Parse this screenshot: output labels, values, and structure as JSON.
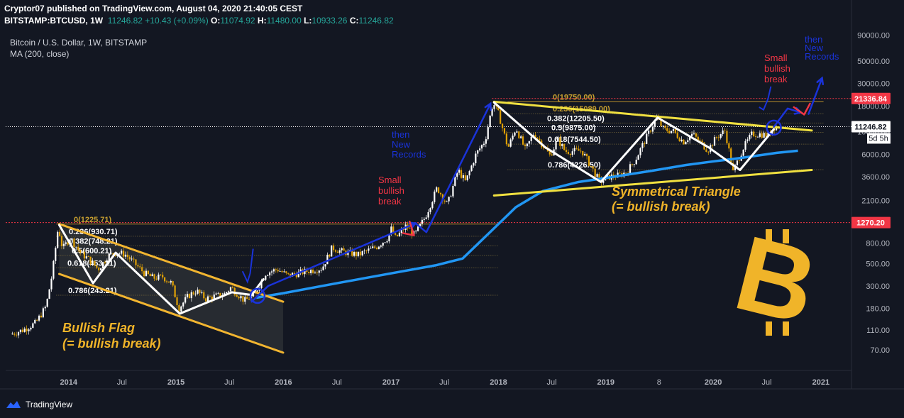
{
  "header": {
    "published_line": "Cryptor07 published on TradingView.com, August 04, 2020 21:40:05 CEST",
    "symbol": "BITSTAMP:BTCUSD, 1W",
    "last": "11246.82",
    "change": "+10.43 (+0.09%)",
    "open_label": "O:",
    "open": "11074.92",
    "high_label": "H:",
    "high": "11480.00",
    "low_label": "L:",
    "low": "10933.26",
    "close_label": "C:",
    "close": "11246.82"
  },
  "legend": {
    "series_title": "Bitcoin / U.S. Dollar, 1W, BITSTAMP",
    "indicator": "MA (200, close)"
  },
  "footer": {
    "brand": "TradingView"
  },
  "colors": {
    "background": "#131722",
    "up": "#ffffff",
    "down": "#e0a106",
    "ma": "#2196f3",
    "red": "#f23645",
    "yellow": "#f0e040",
    "blue_annot": "#1a33d9",
    "bitcoin": "#f0b429",
    "fib": "#c8a030"
  },
  "chart_data": {
    "type": "candlestick",
    "title": "Bitcoin / U.S. Dollar, 1W, BITSTAMP",
    "scale": "log",
    "x_tick_labels": [
      "2014",
      "Jul",
      "2015",
      "Jul",
      "2016",
      "Jul",
      "2017",
      "Jul",
      "2018",
      "Jul",
      "2019",
      "8",
      "2020",
      "Jul",
      "2021"
    ],
    "x_tick_dates": [
      "2014-01-01",
      "2014-07-01",
      "2015-01-01",
      "2015-07-01",
      "2016-01-01",
      "2016-07-01",
      "2017-01-01",
      "2017-07-01",
      "2018-01-01",
      "2018-07-01",
      "2019-01-01",
      "2019-07-01",
      "2020-01-01",
      "2020-07-01",
      "2021-01-01"
    ],
    "y_tick_labels": [
      "90000.00",
      "50000.00",
      "30000.00",
      "18000.00",
      "10000.00",
      "6000.00",
      "3600.00",
      "2100.00",
      "1200.00",
      "800.00",
      "500.00",
      "300.00",
      "180.00",
      "110.00",
      "70.00"
    ],
    "y_ticks": [
      90000,
      50000,
      30000,
      18000,
      10000,
      6000,
      3600,
      2100,
      1200,
      800,
      500,
      300,
      180,
      110,
      70
    ],
    "ylim": [
      44,
      105000
    ],
    "xlim": [
      "2013-06-01",
      "2021-04-15"
    ],
    "price_series": [
      [
        "2013-06-20",
        100
      ],
      [
        "2013-08-01",
        110
      ],
      [
        "2013-09-15",
        130
      ],
      [
        "2013-10-20",
        190
      ],
      [
        "2013-11-10",
        400
      ],
      [
        "2013-11-30",
        1150
      ],
      [
        "2013-12-15",
        700
      ],
      [
        "2014-01-10",
        900
      ],
      [
        "2014-02-15",
        630
      ],
      [
        "2014-03-15",
        550
      ],
      [
        "2014-04-15",
        440
      ],
      [
        "2014-05-20",
        600
      ],
      [
        "2014-06-15",
        640
      ],
      [
        "2014-07-15",
        620
      ],
      [
        "2014-08-20",
        490
      ],
      [
        "2014-09-20",
        400
      ],
      [
        "2014-10-20",
        360
      ],
      [
        "2014-11-20",
        370
      ],
      [
        "2014-12-20",
        320
      ],
      [
        "2015-01-14",
        180
      ],
      [
        "2015-02-15",
        240
      ],
      [
        "2015-03-15",
        270
      ],
      [
        "2015-04-15",
        225
      ],
      [
        "2015-05-15",
        238
      ],
      [
        "2015-06-15",
        245
      ],
      [
        "2015-07-10",
        290
      ],
      [
        "2015-08-25",
        215
      ],
      [
        "2015-09-25",
        238
      ],
      [
        "2015-11-04",
        400
      ],
      [
        "2015-12-15",
        440
      ],
      [
        "2016-01-20",
        380
      ],
      [
        "2016-03-15",
        415
      ],
      [
        "2016-05-15",
        450
      ],
      [
        "2016-06-18",
        720
      ],
      [
        "2016-07-20",
        660
      ],
      [
        "2016-09-15",
        610
      ],
      [
        "2016-11-15",
        730
      ],
      [
        "2016-12-25",
        900
      ],
      [
        "2017-01-05",
        1100
      ],
      [
        "2017-01-20",
        890
      ],
      [
        "2017-02-25",
        1180
      ],
      [
        "2017-03-25",
        950
      ],
      [
        "2017-05-01",
        1450
      ],
      [
        "2017-06-10",
        2800
      ],
      [
        "2017-07-15",
        1900
      ],
      [
        "2017-08-20",
        4200
      ],
      [
        "2017-09-15",
        3200
      ],
      [
        "2017-10-20",
        6000
      ],
      [
        "2017-11-20",
        8200
      ],
      [
        "2017-12-17",
        19500
      ],
      [
        "2018-01-05",
        15000
      ],
      [
        "2018-02-06",
        6900
      ],
      [
        "2018-03-05",
        11000
      ],
      [
        "2018-04-06",
        6600
      ],
      [
        "2018-05-05",
        9800
      ],
      [
        "2018-06-29",
        5800
      ],
      [
        "2018-07-25",
        8400
      ],
      [
        "2018-08-20",
        6400
      ],
      [
        "2018-10-15",
        6500
      ],
      [
        "2018-11-20",
        4300
      ],
      [
        "2018-12-15",
        3200
      ],
      [
        "2019-01-15",
        3600
      ],
      [
        "2019-02-15",
        3700
      ],
      [
        "2019-03-15",
        4000
      ],
      [
        "2019-04-15",
        5300
      ],
      [
        "2019-05-15",
        8000
      ],
      [
        "2019-06-26",
        13800
      ],
      [
        "2019-07-20",
        10500
      ],
      [
        "2019-08-20",
        10200
      ],
      [
        "2019-09-25",
        8000
      ],
      [
        "2019-10-26",
        9500
      ],
      [
        "2019-12-17",
        6600
      ],
      [
        "2020-01-15",
        8800
      ],
      [
        "2020-02-14",
        10300
      ],
      [
        "2020-03-12",
        4000
      ],
      [
        "2020-04-15",
        6900
      ],
      [
        "2020-05-15",
        9500
      ],
      [
        "2020-06-15",
        9500
      ],
      [
        "2020-07-10",
        9200
      ],
      [
        "2020-07-28",
        11200
      ],
      [
        "2020-08-04",
        11246.82
      ]
    ],
    "ma200": [
      [
        "2015-10-01",
        230
      ],
      [
        "2016-01-01",
        255
      ],
      [
        "2016-07-01",
        320
      ],
      [
        "2017-01-01",
        400
      ],
      [
        "2017-06-01",
        480
      ],
      [
        "2017-09-01",
        560
      ],
      [
        "2017-12-15",
        1100
      ],
      [
        "2018-03-01",
        1800
      ],
      [
        "2018-06-01",
        2600
      ],
      [
        "2018-10-01",
        3200
      ],
      [
        "2019-01-01",
        3500
      ],
      [
        "2019-06-01",
        4100
      ],
      [
        "2019-10-01",
        4700
      ],
      [
        "2020-01-01",
        5100
      ],
      [
        "2020-04-01",
        5500
      ],
      [
        "2020-08-04",
        6200
      ],
      [
        "2020-10-15",
        6500
      ]
    ],
    "price_labels": [
      {
        "value": 21336.84,
        "text": "21336.84",
        "style": "red"
      },
      {
        "value": 11246.82,
        "text": "11246.82",
        "style": "current"
      },
      {
        "value": 1270.2,
        "text": "1270.20",
        "style": "red"
      }
    ],
    "countdown": "5d 5h",
    "fib_sets": [
      {
        "x_start": "2013-11-20",
        "x_end": "2017-12-31",
        "levels": [
          {
            "value": 1225.71,
            "text": "0(1225.71)",
            "color": "#c8a030"
          },
          {
            "value": 930.71,
            "text": "0.236(930.71)",
            "color": "#ffffff"
          },
          {
            "value": 748.21,
            "text": "0.382(748.21)",
            "color": "#ffffff"
          },
          {
            "value": 600.21,
            "text": "0.5(600.21)",
            "color": "#ffffff"
          },
          {
            "value": 453.21,
            "text": "0.618(453.21)",
            "color": "#ffffff"
          },
          {
            "value": 243.21,
            "text": "0.786(243.21)",
            "color": "#ffffff"
          }
        ]
      },
      {
        "x_start": "2018-02-01",
        "x_end": "2021-01-10",
        "levels": [
          {
            "value": 19750,
            "text": "0(19750.00)",
            "color": "#c8a030"
          },
          {
            "value": 15089,
            "text": "0.236(15089.00)",
            "color": "#c8a030"
          },
          {
            "value": 12205.5,
            "text": "0.382(12205.50)",
            "color": "#ffffff"
          },
          {
            "value": 9875,
            "text": "0.5(9875.00)",
            "color": "#ffffff"
          },
          {
            "value": 7544.5,
            "text": "0.618(7544.50)",
            "color": "#ffffff"
          },
          {
            "value": 4226.5,
            "text": "0.786(4226.50)",
            "color": "#ffffff"
          }
        ]
      }
    ],
    "annotations": [
      {
        "text": "Bullish Flag",
        "color": "#f0b429"
      },
      {
        "text": "(= bullish break)",
        "color": "#f0b429"
      },
      {
        "text": "Symmetrical Triangle",
        "color": "#f0b429"
      },
      {
        "text": "(= bullish break)",
        "color": "#f0b429"
      },
      {
        "text": "Small bullish break",
        "color": "#f23645"
      },
      {
        "text": "then New Records",
        "color": "#1a33d9"
      },
      {
        "text": "Small bullish break",
        "color": "#f23645"
      },
      {
        "text": "then New Records",
        "color": "#1a33d9"
      }
    ]
  }
}
